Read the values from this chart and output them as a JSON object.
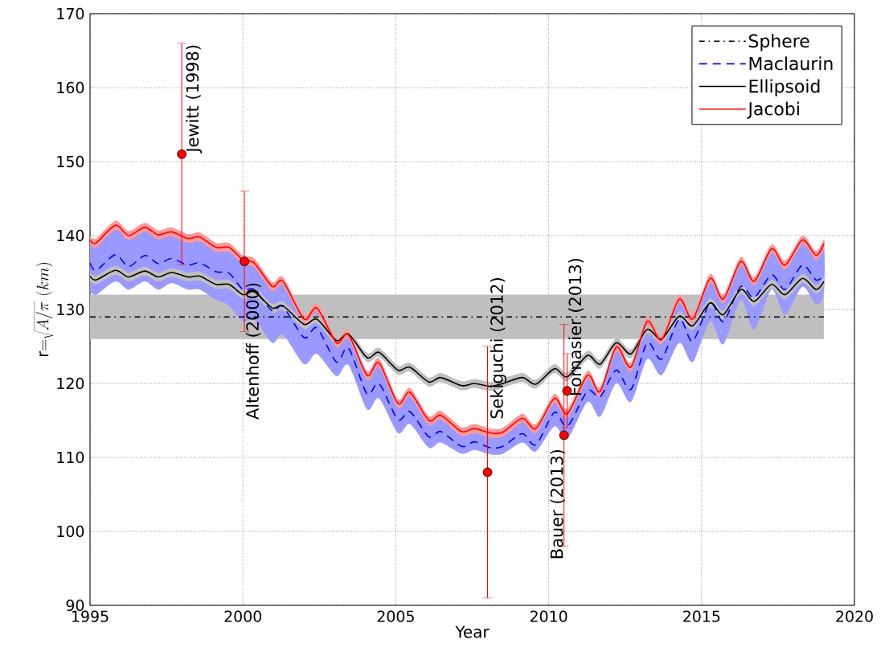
{
  "chart_data": {
    "type": "line",
    "xlabel": "Year",
    "ylabel": "\\mathrm{r}{=}\\sqrt{A/\\pi}~(km)",
    "xlim": [
      1995,
      2020
    ],
    "ylim": [
      90,
      170
    ],
    "xticks": [
      1995,
      2000,
      2005,
      2010,
      2015,
      2020
    ],
    "yticks": [
      90,
      100,
      110,
      120,
      130,
      140,
      150,
      160,
      170
    ],
    "grid": true,
    "legend": "top right",
    "x": [
      1995.0,
      1995.2,
      1995.83,
      1996.26,
      1996.79,
      1997.23,
      1997.67,
      1998.2,
      1998.59,
      1999.12,
      1999.55,
      2000.0,
      2000.37,
      2000.96,
      2001.31,
      2002.0,
      2002.42,
      2003.06,
      2003.45,
      2004.06,
      2004.45,
      2005.07,
      2005.46,
      2006.08,
      2006.47,
      2007.15,
      2007.57,
      2008.09,
      2008.5,
      2009.14,
      2009.58,
      2010.19,
      2010.61,
      2011.27,
      2011.68,
      2012.21,
      2012.69,
      2013.22,
      2013.69,
      2014.27,
      2014.71,
      2015.28,
      2015.71,
      2016.28,
      2016.72,
      2017.29,
      2017.73,
      2018.3,
      2018.74,
      2019.0
    ],
    "series": [
      {
        "name": "Sphere",
        "color": "#000000",
        "line_style": "dashdot",
        "x": [
          1995,
          2019
        ],
        "values": [
          129,
          129
        ],
        "lower": [
          126,
          126
        ],
        "upper": [
          132,
          132
        ]
      },
      {
        "name": "Maclaurin",
        "color": "#0000ff",
        "line_style": "dashed",
        "values": [
          136.3,
          135.3,
          137.4,
          135.8,
          137.3,
          136.2,
          136.9,
          136.0,
          136.3,
          135.1,
          134.9,
          132.7,
          132.7,
          129.8,
          130.4,
          126.2,
          127.5,
          122.9,
          124.8,
          118.6,
          120.0,
          115.1,
          116.2,
          112.8,
          113.5,
          111.5,
          112.1,
          111.3,
          111.5,
          113.2,
          111.7,
          116.1,
          114.2,
          119.0,
          118.2,
          121.8,
          119.2,
          125.5,
          123.3,
          128.7,
          125.7,
          130.9,
          128.4,
          133.1,
          131.6,
          134.7,
          132.7,
          136.0,
          134.0,
          134.6
        ],
        "lower": [
          132.5,
          132.0,
          133.8,
          132.7,
          133.8,
          132.7,
          133.6,
          132.7,
          132.7,
          131.3,
          130.5,
          128.4,
          128.7,
          125.5,
          126.6,
          122.6,
          124.0,
          121.0,
          122.5,
          116.5,
          118.0,
          113.3,
          114.5,
          111.3,
          112.0,
          110.5,
          111.0,
          110.4,
          110.5,
          112.0,
          110.8,
          114.2,
          112.5,
          117.5,
          115.5,
          120.0,
          117.5,
          123.3,
          121.1,
          125.5,
          122.9,
          128.4,
          125.3,
          131.3,
          127.3,
          132.7,
          129.3,
          133.1,
          130.7,
          132.2
        ],
        "upper": [
          139.4,
          139.0,
          141.4,
          140.0,
          141.1,
          140.1,
          140.5,
          139.6,
          139.8,
          138.4,
          138.4,
          136.7,
          136.3,
          133.1,
          133.8,
          128.7,
          130.2,
          125.5,
          126.6,
          121.1,
          122.8,
          117.3,
          118.8,
          115.0,
          115.7,
          113.5,
          113.9,
          113.3,
          113.4,
          115.3,
          113.9,
          118.0,
          115.9,
          121.1,
          118.9,
          124.9,
          122.2,
          128.4,
          125.9,
          131.4,
          128.7,
          134.2,
          131.4,
          136.5,
          133.8,
          138.2,
          136.0,
          139.4,
          137.3,
          138.9
        ]
      },
      {
        "name": "Ellipsoid",
        "color": "#000000",
        "line_style": "solid",
        "values": [
          134.5,
          134.0,
          135.3,
          134.4,
          135.2,
          134.4,
          135.0,
          134.4,
          134.5,
          133.4,
          133.4,
          132.0,
          132.4,
          130.2,
          130.5,
          128.0,
          128.7,
          125.8,
          126.7,
          123.5,
          124.2,
          121.8,
          122.2,
          120.2,
          120.8,
          119.7,
          120.0,
          119.6,
          120.0,
          120.8,
          119.9,
          122.0,
          120.9,
          123.8,
          122.6,
          125.5,
          124.0,
          127.3,
          126.0,
          129.1,
          127.8,
          130.9,
          129.3,
          132.7,
          131.1,
          133.4,
          132.0,
          134.2,
          132.7,
          133.8
        ],
        "lower": [
          133.9,
          133.4,
          134.7,
          133.8,
          134.6,
          133.8,
          134.4,
          133.8,
          133.9,
          132.8,
          132.8,
          131.4,
          131.8,
          129.6,
          129.9,
          127.4,
          128.1,
          125.2,
          126.1,
          122.9,
          123.6,
          121.2,
          121.6,
          119.6,
          120.2,
          119.1,
          119.4,
          119.0,
          119.4,
          120.2,
          119.3,
          121.4,
          120.3,
          123.2,
          122.0,
          124.9,
          123.4,
          126.7,
          125.4,
          128.5,
          127.2,
          130.3,
          128.7,
          132.1,
          130.5,
          132.8,
          131.4,
          133.6,
          132.1,
          133.2
        ],
        "upper": [
          135.1,
          134.6,
          135.9,
          135.0,
          135.8,
          135.0,
          135.6,
          135.0,
          135.1,
          134.0,
          134.0,
          132.6,
          133.0,
          130.8,
          131.1,
          128.6,
          129.3,
          126.4,
          127.3,
          124.1,
          124.8,
          122.4,
          122.8,
          120.8,
          121.4,
          120.3,
          120.6,
          120.2,
          120.6,
          121.4,
          120.5,
          122.6,
          121.5,
          124.4,
          123.2,
          126.1,
          124.6,
          127.9,
          126.6,
          129.7,
          128.4,
          131.5,
          129.9,
          133.3,
          131.7,
          134.0,
          132.6,
          134.8,
          133.3,
          134.4
        ]
      },
      {
        "name": "Jacobi",
        "color": "#ff0000",
        "line_style": "solid",
        "values": [
          139.4,
          139.0,
          141.4,
          140.0,
          141.1,
          140.1,
          140.5,
          139.6,
          139.8,
          138.4,
          138.4,
          136.7,
          136.3,
          133.1,
          133.8,
          128.7,
          130.2,
          125.5,
          126.6,
          121.1,
          122.8,
          117.3,
          118.8,
          115.0,
          115.7,
          113.5,
          113.9,
          113.3,
          113.4,
          115.3,
          113.9,
          118.0,
          115.9,
          121.1,
          118.9,
          124.9,
          122.2,
          128.4,
          125.9,
          131.4,
          128.7,
          134.2,
          131.4,
          136.5,
          133.8,
          138.2,
          136.0,
          139.4,
          137.3,
          138.9
        ],
        "lower": [
          138.8,
          138.4,
          140.8,
          139.4,
          140.5,
          139.5,
          139.9,
          139.0,
          139.2,
          137.8,
          137.8,
          136.1,
          135.7,
          132.5,
          133.2,
          128.1,
          129.6,
          124.9,
          126.0,
          120.5,
          122.2,
          116.7,
          118.2,
          114.4,
          115.1,
          112.9,
          113.3,
          112.7,
          112.8,
          114.7,
          113.3,
          117.4,
          115.3,
          120.5,
          118.3,
          124.3,
          121.6,
          127.8,
          125.3,
          130.8,
          128.1,
          133.6,
          130.8,
          135.9,
          133.2,
          137.6,
          135.4,
          138.8,
          136.7,
          138.3
        ],
        "upper": [
          140.0,
          139.6,
          142.0,
          140.6,
          141.7,
          140.7,
          141.1,
          140.2,
          140.4,
          139.0,
          139.0,
          137.3,
          136.9,
          133.7,
          134.4,
          129.3,
          130.8,
          126.1,
          127.2,
          121.7,
          123.4,
          117.9,
          119.4,
          115.6,
          116.3,
          114.1,
          114.5,
          113.9,
          114.0,
          115.9,
          114.5,
          118.6,
          116.5,
          121.7,
          119.5,
          125.5,
          122.8,
          129.0,
          126.5,
          132.0,
          129.3,
          134.8,
          132.0,
          137.1,
          134.4,
          138.8,
          136.6,
          140.0,
          137.9,
          139.5
        ]
      },
      {
        "type": "scatter",
        "color": "#ff0000",
        "marker": "circle",
        "x": [
          1998.0,
          2000.05,
          2008.0,
          2010.5,
          2010.6
        ],
        "values": [
          151,
          136.5,
          108,
          113,
          119
        ],
        "errors": [
          15,
          9.5,
          17,
          15,
          5
        ]
      }
    ],
    "annotations": [
      {
        "text": "Jewitt (1998)",
        "x": 1998.0,
        "y": 151
      },
      {
        "text": "Altenhoff (2000)",
        "x": 2000.05,
        "y": 136.5
      },
      "Sekiguchi (2012)",
      {
        "text": "Bauer (2013)",
        "x": 2010.5,
        "y": 113
      },
      {
        "text": "Fornasier (2013)",
        "x": 2010.6,
        "y": 119
      }
    ]
  }
}
